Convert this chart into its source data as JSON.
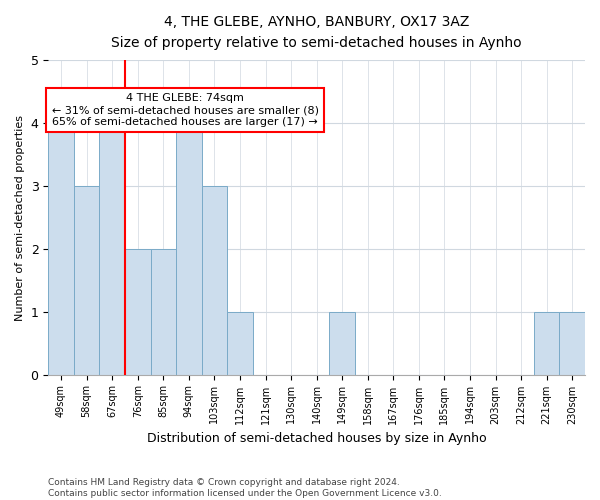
{
  "title1": "4, THE GLEBE, AYNHO, BANBURY, OX17 3AZ",
  "title2": "Size of property relative to semi-detached houses in Aynho",
  "xlabel": "Distribution of semi-detached houses by size in Aynho",
  "ylabel": "Number of semi-detached properties",
  "categories": [
    "49sqm",
    "58sqm",
    "67sqm",
    "76sqm",
    "85sqm",
    "94sqm",
    "103sqm",
    "112sqm",
    "121sqm",
    "130sqm",
    "140sqm",
    "149sqm",
    "158sqm",
    "167sqm",
    "176sqm",
    "185sqm",
    "194sqm",
    "203sqm",
    "212sqm",
    "221sqm",
    "230sqm"
  ],
  "values": [
    4,
    3,
    4,
    2,
    2,
    4,
    3,
    1,
    0,
    0,
    0,
    1,
    0,
    0,
    0,
    0,
    0,
    0,
    0,
    1,
    1
  ],
  "bar_color": "#ccdded",
  "bar_edge_color": "#7aaac8",
  "vline_x": 3.5,
  "annotation_text": "4 THE GLEBE: 74sqm\n← 31% of semi-detached houses are smaller (8)\n65% of semi-detached houses are larger (17) →",
  "annotation_box_color": "white",
  "annotation_box_edge_color": "red",
  "vline_color": "red",
  "ylim": [
    0,
    5
  ],
  "yticks": [
    0,
    1,
    2,
    3,
    4,
    5
  ],
  "footer": "Contains HM Land Registry data © Crown copyright and database right 2024.\nContains public sector information licensed under the Open Government Licence v3.0.",
  "background_color": "white",
  "grid_color": "#d0d8e0"
}
